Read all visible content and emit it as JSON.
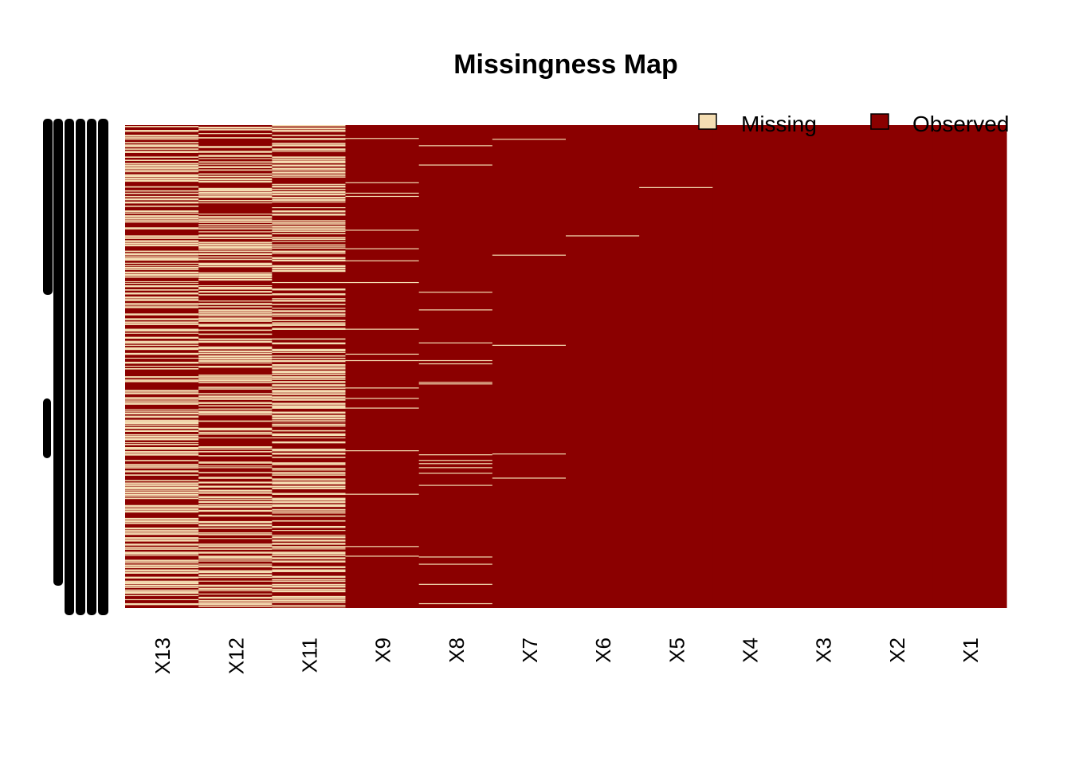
{
  "chart_data": {
    "type": "heatmap",
    "title": "Missingness Map",
    "legend": {
      "placement": "top-right",
      "items": [
        {
          "label": "Missing",
          "color": "#F5DEB3"
        },
        {
          "label": "Observed",
          "color": "#8B0000"
        }
      ]
    },
    "columns": [
      "X13",
      "X12",
      "X11",
      "X9",
      "X8",
      "X7",
      "X6",
      "X5",
      "X4",
      "X3",
      "X2",
      "X1"
    ],
    "columns_approx_missing_fraction": [
      0.42,
      0.38,
      0.36,
      0.03,
      0.03,
      0.01,
      0.002,
      0.003,
      0.0,
      0.0,
      0.0,
      0.0
    ],
    "row_labels_note": "row labels overplotted and illegible",
    "colors": {
      "missing": "#F5DEB3",
      "observed": "#8B0000"
    }
  }
}
